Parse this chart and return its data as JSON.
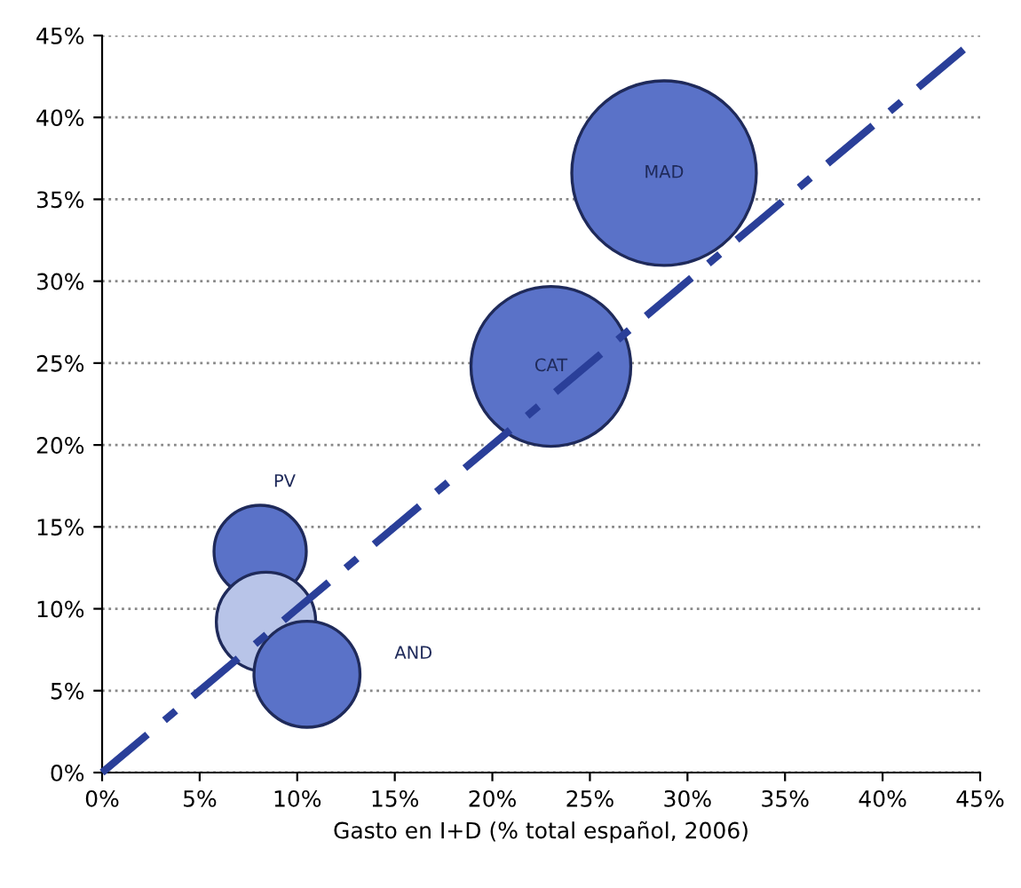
{
  "chart_data": {
    "type": "bubble",
    "xlabel": "Gasto en I+D (% total español, 2006)",
    "xlim": [
      0,
      45
    ],
    "ylim": [
      0,
      45
    ],
    "xticks": [
      {
        "value": 0,
        "label": "0%"
      },
      {
        "value": 5,
        "label": "5%"
      },
      {
        "value": 10,
        "label": "10%"
      },
      {
        "value": 15,
        "label": "15%"
      },
      {
        "value": 20,
        "label": "20%"
      },
      {
        "value": 25,
        "label": "25%"
      },
      {
        "value": 30,
        "label": "30%"
      },
      {
        "value": 35,
        "label": "35%"
      },
      {
        "value": 40,
        "label": "40%"
      },
      {
        "value": 45,
        "label": "45%"
      }
    ],
    "yticks": [
      {
        "value": 0,
        "label": "0%"
      },
      {
        "value": 5,
        "label": "5%"
      },
      {
        "value": 10,
        "label": "10%"
      },
      {
        "value": 15,
        "label": "15%"
      },
      {
        "value": 20,
        "label": "20%"
      },
      {
        "value": 25,
        "label": "25%"
      },
      {
        "value": 30,
        "label": "30%"
      },
      {
        "value": 35,
        "label": "35%"
      },
      {
        "value": 40,
        "label": "40%"
      },
      {
        "value": 45,
        "label": "45%"
      }
    ],
    "grid": "y",
    "legend": false,
    "series": [
      {
        "type": "line",
        "x": [
          0,
          45
        ],
        "values": [
          0,
          45
        ],
        "color": "#2a3f99",
        "line_style": "dashed",
        "marker": "none"
      },
      {
        "name": "MAD",
        "x": [
          28.8
        ],
        "values": [
          36.6
        ],
        "sizes": [
          1
        ],
        "color": "#5a72c8"
      },
      {
        "name": "CAT",
        "x": [
          23
        ],
        "values": [
          24.8
        ],
        "sizes": [
          0.75
        ],
        "color": "#5a72c8"
      },
      {
        "name": "PV",
        "x": [
          8.1
        ],
        "values": [
          13.5
        ],
        "sizes": [
          0.25
        ],
        "color": "#5a72c8"
      },
      {
        "x": [
          8.4
        ],
        "values": [
          9.2
        ],
        "sizes": [
          0.29
        ],
        "color": "#b8c4e8"
      },
      {
        "name": "AND",
        "x": [
          10.5
        ],
        "values": [
          6.0
        ],
        "sizes": [
          0.33
        ],
        "color": "#5a72c8"
      }
    ]
  }
}
